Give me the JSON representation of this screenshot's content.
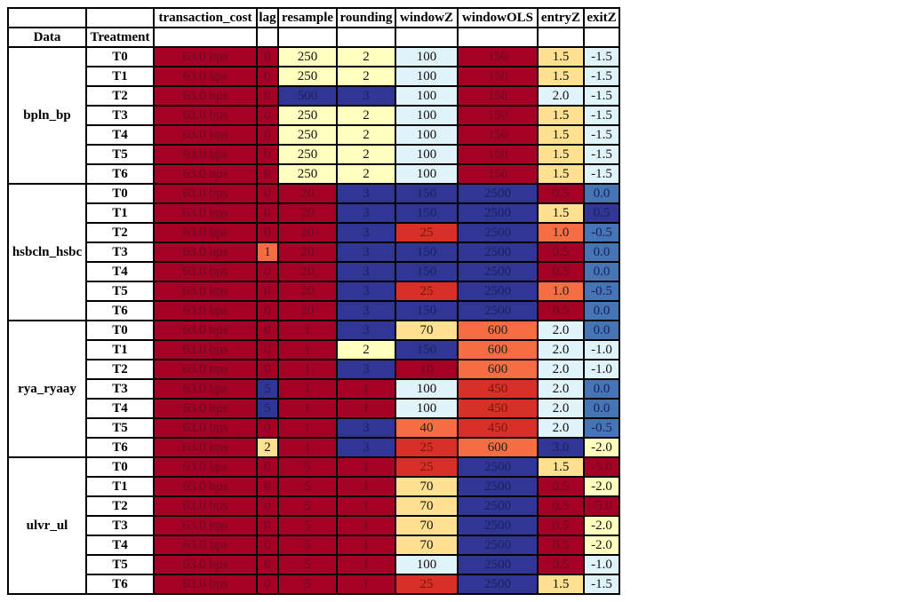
{
  "colors": {
    "dark_red": "#a50026",
    "red": "#d73027",
    "orange": "#f46d43",
    "light_orange": "#fdae61",
    "pale_yellow": "#ffffbf",
    "yellow": "#fee090",
    "light_blue": "#e0f3f8",
    "sky": "#c6e2ee",
    "blue": "#4575b4",
    "dark_blue": "#313695"
  },
  "header": {
    "columns": [
      "transaction_cost",
      "lag",
      "resample",
      "rounding",
      "windowZ",
      "windowOLS",
      "entryZ",
      "exitZ"
    ],
    "data_label": "Data",
    "treatment_label": "Treatment"
  },
  "groups": [
    {
      "name": "bpln_bp",
      "rows": [
        {
          "t": "T0",
          "tc": "63.0 bps",
          "lag": "0",
          "resample": "250",
          "rounding": "2",
          "windowZ": "100",
          "windowOLS": "150",
          "entryZ": "1.5",
          "exitZ": "-1.5"
        },
        {
          "t": "T1",
          "tc": "63.0 bps",
          "lag": "0",
          "resample": "250",
          "rounding": "2",
          "windowZ": "100",
          "windowOLS": "150",
          "entryZ": "1.5",
          "exitZ": "-1.5"
        },
        {
          "t": "T2",
          "tc": "63.0 bps",
          "lag": "0",
          "resample": "500",
          "rounding": "3",
          "windowZ": "100",
          "windowOLS": "150",
          "entryZ": "2.0",
          "exitZ": "-1.5"
        },
        {
          "t": "T3",
          "tc": "63.0 bps",
          "lag": "0",
          "resample": "250",
          "rounding": "2",
          "windowZ": "100",
          "windowOLS": "150",
          "entryZ": "1.5",
          "exitZ": "-1.5"
        },
        {
          "t": "T4",
          "tc": "63.0 bps",
          "lag": "0",
          "resample": "250",
          "rounding": "2",
          "windowZ": "100",
          "windowOLS": "150",
          "entryZ": "1.5",
          "exitZ": "-1.5"
        },
        {
          "t": "T5",
          "tc": "63.0 bps",
          "lag": "0",
          "resample": "250",
          "rounding": "2",
          "windowZ": "100",
          "windowOLS": "150",
          "entryZ": "1.5",
          "exitZ": "-1.5"
        },
        {
          "t": "T6",
          "tc": "63.0 bps",
          "lag": "0",
          "resample": "250",
          "rounding": "2",
          "windowZ": "100",
          "windowOLS": "150",
          "entryZ": "1.5",
          "exitZ": "-1.5"
        }
      ]
    },
    {
      "name": "hsbcln_hsbc",
      "rows": [
        {
          "t": "T0",
          "tc": "63.0 bps",
          "lag": "0",
          "resample": "20",
          "rounding": "3",
          "windowZ": "150",
          "windowOLS": "2500",
          "entryZ": "0.5",
          "exitZ": "0.0"
        },
        {
          "t": "T1",
          "tc": "63.0 bps",
          "lag": "0",
          "resample": "20",
          "rounding": "3",
          "windowZ": "150",
          "windowOLS": "2500",
          "entryZ": "1.5",
          "exitZ": "0.5"
        },
        {
          "t": "T2",
          "tc": "63.0 bps",
          "lag": "0",
          "resample": "20",
          "rounding": "3",
          "windowZ": "25",
          "windowOLS": "2500",
          "entryZ": "1.0",
          "exitZ": "-0.5"
        },
        {
          "t": "T3",
          "tc": "63.0 bps",
          "lag": "1",
          "resample": "20",
          "rounding": "3",
          "windowZ": "150",
          "windowOLS": "2500",
          "entryZ": "0.5",
          "exitZ": "0.0"
        },
        {
          "t": "T4",
          "tc": "63.0 bps",
          "lag": "0",
          "resample": "20",
          "rounding": "3",
          "windowZ": "150",
          "windowOLS": "2500",
          "entryZ": "0.5",
          "exitZ": "0.0"
        },
        {
          "t": "T5",
          "tc": "63.0 bps",
          "lag": "0",
          "resample": "20",
          "rounding": "3",
          "windowZ": "25",
          "windowOLS": "2500",
          "entryZ": "1.0",
          "exitZ": "-0.5"
        },
        {
          "t": "T6",
          "tc": "63.0 bps",
          "lag": "0",
          "resample": "20",
          "rounding": "3",
          "windowZ": "150",
          "windowOLS": "2500",
          "entryZ": "0.5",
          "exitZ": "0.0"
        }
      ]
    },
    {
      "name": "rya_ryaay",
      "rows": [
        {
          "t": "T0",
          "tc": "63.0 bps",
          "lag": "0",
          "resample": "1",
          "rounding": "3",
          "windowZ": "70",
          "windowOLS": "600",
          "entryZ": "2.0",
          "exitZ": "0.0"
        },
        {
          "t": "T1",
          "tc": "63.0 bps",
          "lag": "0",
          "resample": "1",
          "rounding": "2",
          "windowZ": "150",
          "windowOLS": "600",
          "entryZ": "2.0",
          "exitZ": "-1.0"
        },
        {
          "t": "T2",
          "tc": "63.0 bps",
          "lag": "0",
          "resample": "1",
          "rounding": "3",
          "windowZ": "10",
          "windowOLS": "600",
          "entryZ": "2.0",
          "exitZ": "-1.0"
        },
        {
          "t": "T3",
          "tc": "63.0 bps",
          "lag": "5",
          "resample": "1",
          "rounding": "1",
          "windowZ": "100",
          "windowOLS": "450",
          "entryZ": "2.0",
          "exitZ": "0.0"
        },
        {
          "t": "T4",
          "tc": "63.0 bps",
          "lag": "5",
          "resample": "1",
          "rounding": "1",
          "windowZ": "100",
          "windowOLS": "450",
          "entryZ": "2.0",
          "exitZ": "0.0"
        },
        {
          "t": "T5",
          "tc": "63.0 bps",
          "lag": "0",
          "resample": "1",
          "rounding": "3",
          "windowZ": "40",
          "windowOLS": "450",
          "entryZ": "2.0",
          "exitZ": "-0.5"
        },
        {
          "t": "T6",
          "tc": "63.0 bps",
          "lag": "2",
          "resample": "1",
          "rounding": "3",
          "windowZ": "25",
          "windowOLS": "600",
          "entryZ": "3.0",
          "exitZ": "-2.0"
        }
      ]
    },
    {
      "name": "ulvr_ul",
      "rows": [
        {
          "t": "T0",
          "tc": "63.0 bps",
          "lag": "0",
          "resample": "5",
          "rounding": "1",
          "windowZ": "25",
          "windowOLS": "2500",
          "entryZ": "1.5",
          "exitZ": "-5.0"
        },
        {
          "t": "T1",
          "tc": "63.0 bps",
          "lag": "0",
          "resample": "5",
          "rounding": "1",
          "windowZ": "70",
          "windowOLS": "2500",
          "entryZ": "0.5",
          "exitZ": "-2.0"
        },
        {
          "t": "T2",
          "tc": "63.0 bps",
          "lag": "0",
          "resample": "5",
          "rounding": "1",
          "windowZ": "70",
          "windowOLS": "2500",
          "entryZ": "0.5",
          "exitZ": "-5.0"
        },
        {
          "t": "T3",
          "tc": "63.0 bps",
          "lag": "0",
          "resample": "5",
          "rounding": "1",
          "windowZ": "70",
          "windowOLS": "2500",
          "entryZ": "0.5",
          "exitZ": "-2.0"
        },
        {
          "t": "T4",
          "tc": "63.0 bps",
          "lag": "0",
          "resample": "5",
          "rounding": "1",
          "windowZ": "70",
          "windowOLS": "2500",
          "entryZ": "0.5",
          "exitZ": "-2.0"
        },
        {
          "t": "T5",
          "tc": "63.0 bps",
          "lag": "0",
          "resample": "5",
          "rounding": "1",
          "windowZ": "100",
          "windowOLS": "2500",
          "entryZ": "0.5",
          "exitZ": "-1.0"
        },
        {
          "t": "T6",
          "tc": "63.0 bps",
          "lag": "0",
          "resample": "5",
          "rounding": "1",
          "windowZ": "25",
          "windowOLS": "2500",
          "entryZ": "1.5",
          "exitZ": "-1.5"
        }
      ]
    }
  ]
}
